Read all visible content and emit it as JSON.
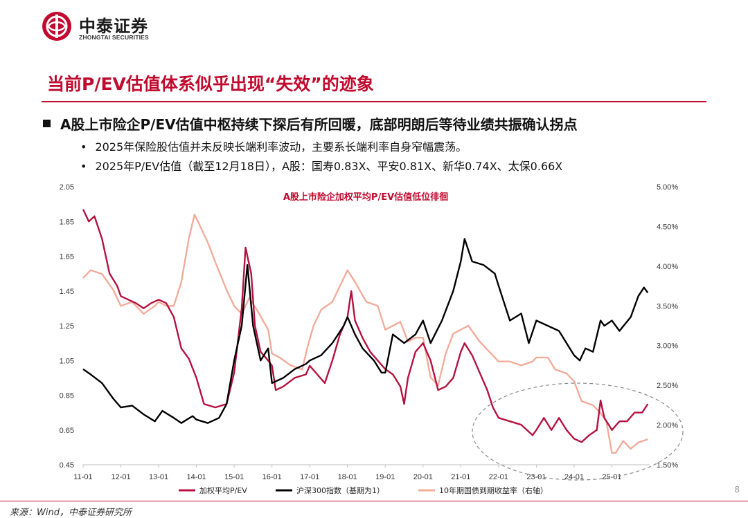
{
  "header": {
    "brand_cn": "中泰证券",
    "brand_en": "ZHONGTAI SECURITIES",
    "page_title": "当前P/EV估值体系似乎出现“失效”的迹象"
  },
  "bullets": {
    "main": "A股上市险企P/EV估值中枢持续下探后有所回暖，底部明朗后等待业绩共振确认拐点",
    "sub1": "2025年保险股估值并未反映长端利率波动，主要系长端利率自身窄幅震荡。",
    "sub2": "2025年P/EV估值（截至12月18日），A股：国寿0.83X、平安0.81X、新华0.74X、太保0.66X",
    "sub_marker": "•"
  },
  "footer": {
    "source": "来源：Wind，中泰证券研究所",
    "page_number": "8"
  },
  "colors": {
    "brand_red": "#c00a2e",
    "series_pev": "#b5113f",
    "series_hs300": "#000000",
    "series_bond": "#f3ab9a"
  },
  "chart_data": {
    "type": "line",
    "annotation": "A股上市险企加权平均P/EV估值低位徘徊",
    "x_ticks": [
      "11-01",
      "12-01",
      "13-01",
      "14-01",
      "15-01",
      "16-01",
      "17-01",
      "18-01",
      "19-01",
      "20-01",
      "21-01",
      "22-01",
      "23-01",
      "24-01",
      "25-01"
    ],
    "y_left": {
      "ticks": [
        "2.05",
        "1.85",
        "1.65",
        "1.45",
        "1.25",
        "1.05",
        "0.85",
        "0.65",
        "0.45"
      ],
      "range": [
        0.45,
        2.05
      ]
    },
    "y_right": {
      "ticks": [
        "5.00%",
        "4.50%",
        "4.00%",
        "3.50%",
        "3.00%",
        "2.50%",
        "2.00%",
        "1.50%"
      ],
      "range": [
        1.5,
        5.0
      ]
    },
    "series": [
      {
        "name": "加权平均P/EV",
        "axis": "left",
        "color": "#b5113f",
        "points": [
          [
            2011.0,
            1.92
          ],
          [
            2011.15,
            1.85
          ],
          [
            2011.3,
            1.88
          ],
          [
            2011.5,
            1.75
          ],
          [
            2011.7,
            1.55
          ],
          [
            2011.9,
            1.48
          ],
          [
            2012.0,
            1.42
          ],
          [
            2012.2,
            1.4
          ],
          [
            2012.4,
            1.38
          ],
          [
            2012.6,
            1.35
          ],
          [
            2012.8,
            1.38
          ],
          [
            2013.0,
            1.4
          ],
          [
            2013.2,
            1.38
          ],
          [
            2013.4,
            1.3
          ],
          [
            2013.6,
            1.12
          ],
          [
            2013.8,
            1.06
          ],
          [
            2014.0,
            0.95
          ],
          [
            2014.2,
            0.8
          ],
          [
            2014.5,
            0.78
          ],
          [
            2014.8,
            0.8
          ],
          [
            2015.0,
            0.98
          ],
          [
            2015.2,
            1.35
          ],
          [
            2015.3,
            1.7
          ],
          [
            2015.45,
            1.55
          ],
          [
            2015.55,
            1.25
          ],
          [
            2015.7,
            1.1
          ],
          [
            2015.9,
            1.05
          ],
          [
            2016.0,
            1.02
          ],
          [
            2016.1,
            0.88
          ],
          [
            2016.3,
            0.9
          ],
          [
            2016.6,
            0.95
          ],
          [
            2016.9,
            0.97
          ],
          [
            2017.0,
            1.02
          ],
          [
            2017.2,
            0.97
          ],
          [
            2017.4,
            0.92
          ],
          [
            2017.6,
            1.05
          ],
          [
            2017.8,
            1.2
          ],
          [
            2018.0,
            1.3
          ],
          [
            2018.1,
            1.45
          ],
          [
            2018.2,
            1.28
          ],
          [
            2018.4,
            1.18
          ],
          [
            2018.6,
            1.1
          ],
          [
            2018.8,
            1.05
          ],
          [
            2019.0,
            1.0
          ],
          [
            2019.2,
            0.97
          ],
          [
            2019.4,
            0.9
          ],
          [
            2019.5,
            0.8
          ],
          [
            2019.6,
            0.95
          ],
          [
            2019.8,
            1.1
          ],
          [
            2020.0,
            1.15
          ],
          [
            2020.2,
            1.05
          ],
          [
            2020.4,
            0.88
          ],
          [
            2020.6,
            0.9
          ],
          [
            2020.8,
            0.95
          ],
          [
            2021.0,
            1.1
          ],
          [
            2021.1,
            1.15
          ],
          [
            2021.3,
            1.08
          ],
          [
            2021.5,
            0.98
          ],
          [
            2021.7,
            0.88
          ],
          [
            2021.85,
            0.78
          ],
          [
            2022.0,
            0.72
          ],
          [
            2022.3,
            0.7
          ],
          [
            2022.6,
            0.68
          ],
          [
            2022.9,
            0.62
          ],
          [
            2023.0,
            0.65
          ],
          [
            2023.2,
            0.72
          ],
          [
            2023.4,
            0.65
          ],
          [
            2023.6,
            0.72
          ],
          [
            2023.8,
            0.65
          ],
          [
            2024.0,
            0.6
          ],
          [
            2024.2,
            0.58
          ],
          [
            2024.4,
            0.62
          ],
          [
            2024.6,
            0.65
          ],
          [
            2024.7,
            0.82
          ],
          [
            2024.8,
            0.72
          ],
          [
            2025.0,
            0.65
          ],
          [
            2025.2,
            0.7
          ],
          [
            2025.4,
            0.7
          ],
          [
            2025.6,
            0.75
          ],
          [
            2025.8,
            0.75
          ],
          [
            2025.95,
            0.8
          ]
        ]
      },
      {
        "name": "沪深300指数（基期为1）",
        "axis": "left",
        "color": "#000000",
        "points": [
          [
            2011.0,
            1.0
          ],
          [
            2011.2,
            0.97
          ],
          [
            2011.5,
            0.92
          ],
          [
            2011.8,
            0.83
          ],
          [
            2012.0,
            0.78
          ],
          [
            2012.3,
            0.79
          ],
          [
            2012.6,
            0.74
          ],
          [
            2012.9,
            0.7
          ],
          [
            2013.1,
            0.76
          ],
          [
            2013.4,
            0.72
          ],
          [
            2013.6,
            0.69
          ],
          [
            2013.9,
            0.73
          ],
          [
            2014.0,
            0.71
          ],
          [
            2014.3,
            0.69
          ],
          [
            2014.6,
            0.72
          ],
          [
            2014.8,
            0.8
          ],
          [
            2015.0,
            1.05
          ],
          [
            2015.2,
            1.25
          ],
          [
            2015.35,
            1.6
          ],
          [
            2015.5,
            1.25
          ],
          [
            2015.7,
            1.05
          ],
          [
            2015.9,
            1.12
          ],
          [
            2016.0,
            0.92
          ],
          [
            2016.3,
            0.95
          ],
          [
            2016.6,
            1.0
          ],
          [
            2016.9,
            1.03
          ],
          [
            2017.0,
            1.05
          ],
          [
            2017.3,
            1.08
          ],
          [
            2017.6,
            1.15
          ],
          [
            2017.9,
            1.25
          ],
          [
            2018.0,
            1.3
          ],
          [
            2018.2,
            1.2
          ],
          [
            2018.4,
            1.12
          ],
          [
            2018.7,
            1.05
          ],
          [
            2018.9,
            0.98
          ],
          [
            2019.0,
            0.98
          ],
          [
            2019.2,
            1.2
          ],
          [
            2019.5,
            1.15
          ],
          [
            2019.8,
            1.2
          ],
          [
            2020.0,
            1.28
          ],
          [
            2020.2,
            1.15
          ],
          [
            2020.5,
            1.28
          ],
          [
            2020.8,
            1.45
          ],
          [
            2021.0,
            1.62
          ],
          [
            2021.1,
            1.75
          ],
          [
            2021.3,
            1.62
          ],
          [
            2021.6,
            1.6
          ],
          [
            2021.9,
            1.55
          ],
          [
            2022.0,
            1.48
          ],
          [
            2022.3,
            1.28
          ],
          [
            2022.6,
            1.32
          ],
          [
            2022.8,
            1.15
          ],
          [
            2023.0,
            1.28
          ],
          [
            2023.3,
            1.25
          ],
          [
            2023.6,
            1.22
          ],
          [
            2023.8,
            1.15
          ],
          [
            2024.0,
            1.08
          ],
          [
            2024.15,
            1.05
          ],
          [
            2024.3,
            1.12
          ],
          [
            2024.5,
            1.1
          ],
          [
            2024.7,
            1.28
          ],
          [
            2024.8,
            1.25
          ],
          [
            2025.0,
            1.28
          ],
          [
            2025.2,
            1.22
          ],
          [
            2025.5,
            1.3
          ],
          [
            2025.7,
            1.42
          ],
          [
            2025.85,
            1.47
          ],
          [
            2025.95,
            1.44
          ]
        ]
      },
      {
        "name": "10年期国债到期收益率（右轴）",
        "axis": "right",
        "color": "#f3ab9a",
        "points": [
          [
            2011.0,
            3.85
          ],
          [
            2011.2,
            3.95
          ],
          [
            2011.5,
            3.9
          ],
          [
            2011.8,
            3.7
          ],
          [
            2012.0,
            3.5
          ],
          [
            2012.3,
            3.55
          ],
          [
            2012.6,
            3.4
          ],
          [
            2012.9,
            3.5
          ],
          [
            2013.0,
            3.55
          ],
          [
            2013.2,
            3.5
          ],
          [
            2013.4,
            3.5
          ],
          [
            2013.6,
            3.8
          ],
          [
            2013.8,
            4.35
          ],
          [
            2013.95,
            4.65
          ],
          [
            2014.1,
            4.5
          ],
          [
            2014.3,
            4.3
          ],
          [
            2014.5,
            4.05
          ],
          [
            2014.8,
            3.7
          ],
          [
            2015.0,
            3.5
          ],
          [
            2015.2,
            3.4
          ],
          [
            2015.4,
            3.6
          ],
          [
            2015.6,
            3.45
          ],
          [
            2015.9,
            3.2
          ],
          [
            2016.0,
            2.9
          ],
          [
            2016.2,
            2.85
          ],
          [
            2016.5,
            2.75
          ],
          [
            2016.8,
            2.7
          ],
          [
            2016.95,
            3.0
          ],
          [
            2017.1,
            3.25
          ],
          [
            2017.3,
            3.45
          ],
          [
            2017.6,
            3.55
          ],
          [
            2017.9,
            3.85
          ],
          [
            2018.0,
            3.95
          ],
          [
            2018.2,
            3.8
          ],
          [
            2018.5,
            3.55
          ],
          [
            2018.8,
            3.5
          ],
          [
            2019.0,
            3.2
          ],
          [
            2019.2,
            3.25
          ],
          [
            2019.4,
            3.3
          ],
          [
            2019.6,
            3.05
          ],
          [
            2019.8,
            3.1
          ],
          [
            2020.0,
            3.1
          ],
          [
            2020.2,
            2.6
          ],
          [
            2020.4,
            2.5
          ],
          [
            2020.6,
            2.9
          ],
          [
            2020.8,
            3.15
          ],
          [
            2021.0,
            3.2
          ],
          [
            2021.2,
            3.25
          ],
          [
            2021.5,
            3.05
          ],
          [
            2021.8,
            2.9
          ],
          [
            2022.0,
            2.8
          ],
          [
            2022.3,
            2.8
          ],
          [
            2022.6,
            2.75
          ],
          [
            2022.9,
            2.8
          ],
          [
            2023.0,
            2.85
          ],
          [
            2023.3,
            2.85
          ],
          [
            2023.5,
            2.7
          ],
          [
            2023.8,
            2.65
          ],
          [
            2024.0,
            2.55
          ],
          [
            2024.2,
            2.3
          ],
          [
            2024.5,
            2.25
          ],
          [
            2024.7,
            2.15
          ],
          [
            2024.85,
            2.05
          ],
          [
            2025.0,
            1.65
          ],
          [
            2025.1,
            1.65
          ],
          [
            2025.3,
            1.8
          ],
          [
            2025.5,
            1.7
          ],
          [
            2025.7,
            1.78
          ],
          [
            2025.95,
            1.82
          ]
        ]
      }
    ],
    "legend_position": "bottom"
  }
}
